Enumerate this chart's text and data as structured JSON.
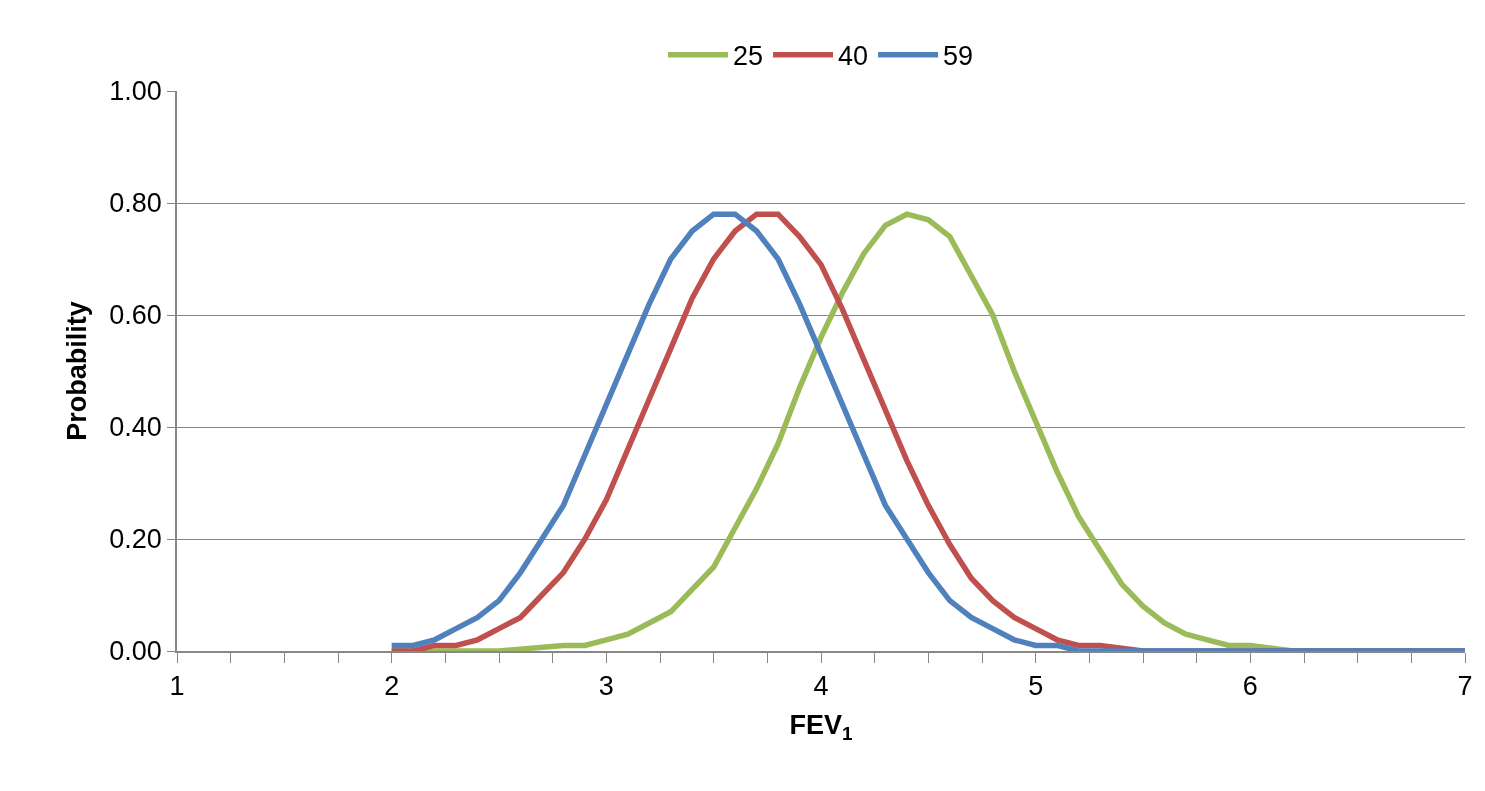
{
  "chart_data": {
    "type": "line",
    "xlabel": "FEV$_{1}$",
    "ylabel": "Probability",
    "xlim": [
      1,
      7
    ],
    "xticks": [
      1,
      {
        "value": 1.25,
        "label": null
      },
      {
        "value": 1.5,
        "label": null
      },
      {
        "value": 1.75,
        "label": null
      },
      2,
      {
        "value": 2.25,
        "label": null
      },
      {
        "value": 2.5,
        "label": null
      },
      {
        "value": 2.75,
        "label": null
      },
      3,
      {
        "value": 3.25,
        "label": null
      },
      {
        "value": 3.5,
        "label": null
      },
      {
        "value": 3.75,
        "label": null
      },
      4,
      {
        "value": 4.25,
        "label": null
      },
      {
        "value": 4.5,
        "label": null
      },
      {
        "value": 4.75,
        "label": null
      },
      5,
      {
        "value": 5.25,
        "label": null
      },
      {
        "value": 5.5,
        "label": null
      },
      {
        "value": 5.75,
        "label": null
      },
      6,
      {
        "value": 6.25,
        "label": null
      },
      {
        "value": 6.5,
        "label": null
      },
      {
        "value": 6.75,
        "label": null
      },
      7
    ],
    "ylim": [
      0,
      1
    ],
    "yticks": [
      {
        "value": 0,
        "label": "0.00"
      },
      {
        "value": 0.2,
        "label": "0.20"
      },
      {
        "value": 0.4,
        "label": "0.40"
      },
      {
        "value": 0.6,
        "label": "0.60"
      },
      {
        "value": 0.8,
        "label": "0.80"
      },
      {
        "value": 1,
        "label": "1.00"
      }
    ],
    "grid": "y",
    "legend": "top",
    "marker": "none",
    "line_style": "solid",
    "series": [
      {
        "name": "25",
        "color": "#9bbb59",
        "x": [
          2.0,
          2.5,
          2.8,
          2.9,
          3.0,
          3.1,
          3.2,
          3.3,
          3.4,
          3.5,
          3.6,
          3.7,
          3.8,
          3.9,
          4.0,
          4.1,
          4.2,
          4.3,
          4.4,
          4.5,
          4.6,
          4.7,
          4.8,
          4.9,
          5.0,
          5.1,
          5.2,
          5.3,
          5.4,
          5.5,
          5.6,
          5.7,
          5.8,
          5.9,
          6.0,
          6.2,
          7.0
        ],
        "values": [
          0,
          0,
          0.01,
          0.01,
          0.02,
          0.03,
          0.05,
          0.07,
          0.11,
          0.15,
          0.22,
          0.29,
          0.37,
          0.47,
          0.56,
          0.64,
          0.71,
          0.76,
          0.78,
          0.77,
          0.74,
          0.67,
          0.6,
          0.5,
          0.41,
          0.32,
          0.24,
          0.18,
          0.12,
          0.08,
          0.05,
          0.03,
          0.02,
          0.01,
          0.01,
          0,
          0
        ]
      },
      {
        "name": "40",
        "color": "#c0504d",
        "x": [
          2.0,
          2.1,
          2.2,
          2.3,
          2.4,
          2.5,
          2.6,
          2.7,
          2.8,
          2.9,
          3.0,
          3.1,
          3.2,
          3.3,
          3.4,
          3.5,
          3.6,
          3.7,
          3.8,
          3.9,
          4.0,
          4.1,
          4.2,
          4.3,
          4.4,
          4.5,
          4.6,
          4.7,
          4.8,
          4.9,
          5.0,
          5.1,
          5.2,
          5.3,
          5.5,
          7.0
        ],
        "values": [
          0,
          0,
          0.01,
          0.01,
          0.02,
          0.04,
          0.06,
          0.1,
          0.14,
          0.2,
          0.27,
          0.36,
          0.45,
          0.54,
          0.63,
          0.7,
          0.75,
          0.78,
          0.78,
          0.74,
          0.69,
          0.61,
          0.52,
          0.43,
          0.34,
          0.26,
          0.19,
          0.13,
          0.09,
          0.06,
          0.04,
          0.02,
          0.01,
          0.01,
          0,
          0
        ]
      },
      {
        "name": "59",
        "color": "#4f81bd",
        "x": [
          2.0,
          2.1,
          2.2,
          2.3,
          2.4,
          2.5,
          2.6,
          2.7,
          2.8,
          2.9,
          3.0,
          3.1,
          3.2,
          3.3,
          3.4,
          3.5,
          3.6,
          3.7,
          3.8,
          3.9,
          4.0,
          4.1,
          4.2,
          4.3,
          4.4,
          4.5,
          4.6,
          4.7,
          4.8,
          4.9,
          5.0,
          5.1,
          5.2,
          7.0
        ],
        "values": [
          0.01,
          0.01,
          0.02,
          0.04,
          0.06,
          0.09,
          0.14,
          0.2,
          0.26,
          0.35,
          0.44,
          0.53,
          0.62,
          0.7,
          0.75,
          0.78,
          0.78,
          0.75,
          0.7,
          0.62,
          0.53,
          0.44,
          0.35,
          0.26,
          0.2,
          0.14,
          0.09,
          0.06,
          0.04,
          0.02,
          0.01,
          0.01,
          0,
          0
        ]
      }
    ]
  }
}
